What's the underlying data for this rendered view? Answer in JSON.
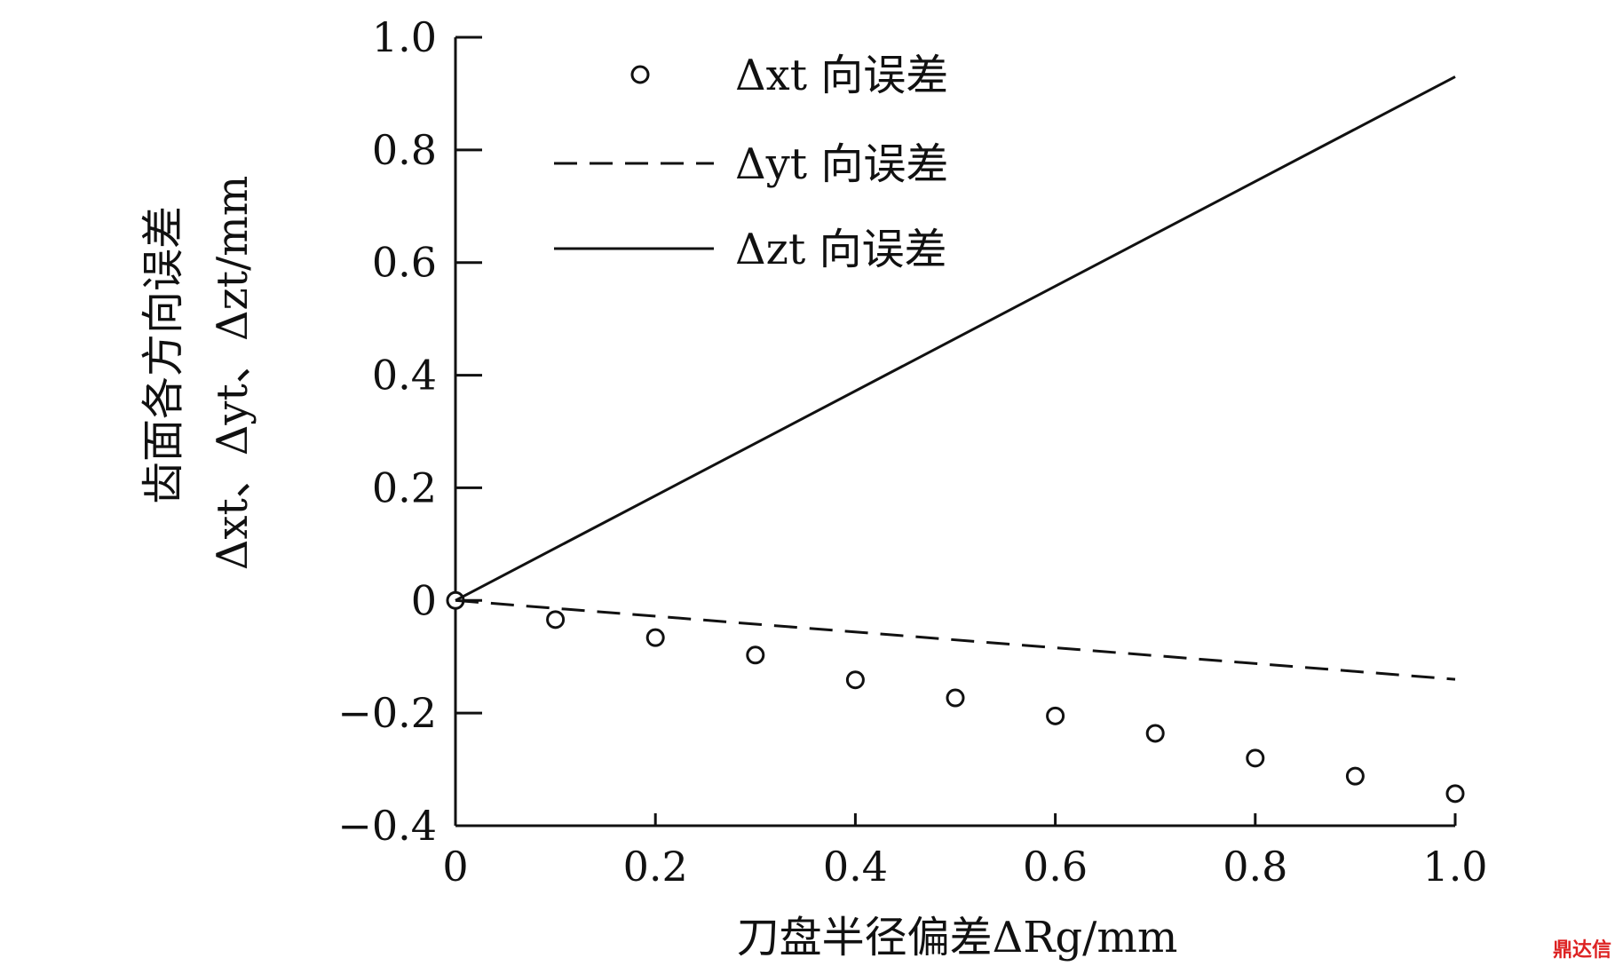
{
  "chart_data": {
    "type": "line",
    "xlabel": "刀盘半径偏差ΔRg/mm",
    "ylabel_line1": "齿面各方向误差",
    "ylabel_line2": "Δxt、Δyt、Δzt/mm",
    "xlim": [
      0,
      1.0
    ],
    "ylim": [
      -0.4,
      1.0
    ],
    "x_ticks": [
      "0",
      "0.2",
      "0.4",
      "0.6",
      "0.8",
      "1.0"
    ],
    "y_ticks": [
      "1.0",
      "0.8",
      "0.6",
      "0.4",
      "0.2",
      "0",
      "−0.2",
      "−0.4"
    ],
    "grid": false,
    "legend_position": "top-left",
    "series": [
      {
        "name": "Δxt 向误差",
        "style": "markers-circle",
        "x": [
          0,
          0.1,
          0.2,
          0.3,
          0.4,
          0.5,
          0.6,
          0.7,
          0.8,
          0.9,
          1.0
        ],
        "y": [
          0,
          -0.034,
          -0.066,
          -0.097,
          -0.141,
          -0.173,
          -0.205,
          -0.236,
          -0.28,
          -0.312,
          -0.343
        ]
      },
      {
        "name": "Δyt 向误差",
        "style": "dashed",
        "x": [
          0,
          1.0
        ],
        "y": [
          0,
          -0.14
        ]
      },
      {
        "name": "Δzt 向误差",
        "style": "solid",
        "x": [
          0,
          1.0
        ],
        "y": [
          0,
          0.93
        ]
      }
    ]
  },
  "watermark": "鼎达信"
}
